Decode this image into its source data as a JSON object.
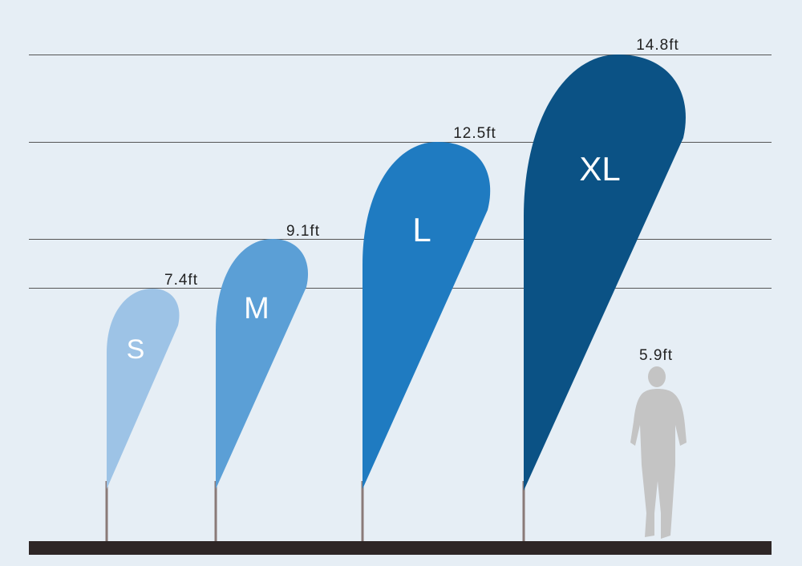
{
  "flags": [
    {
      "label": "S",
      "height": "7.4ft"
    },
    {
      "label": "M",
      "height": "9.1ft"
    },
    {
      "label": "L",
      "height": "12.5ft"
    },
    {
      "label": "XL",
      "height": "14.8ft"
    }
  ],
  "person": {
    "height": "5.9ft"
  }
}
